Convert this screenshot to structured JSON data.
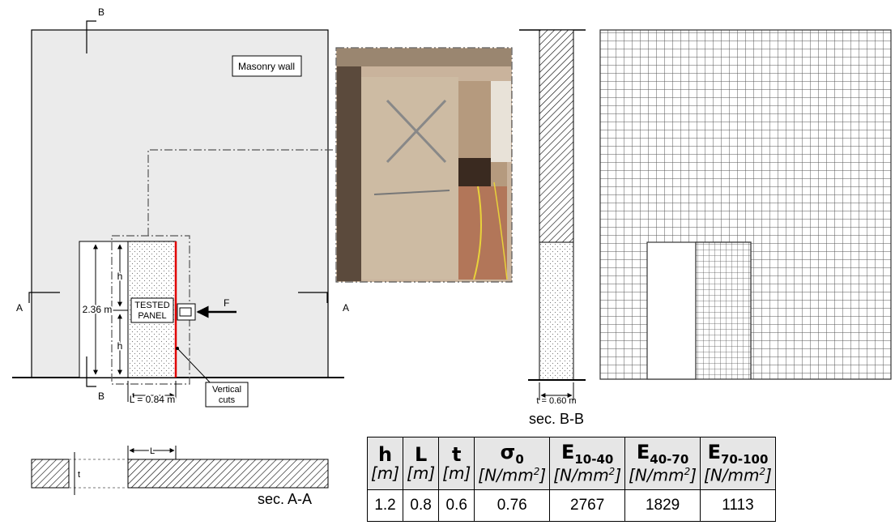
{
  "elevation": {
    "wall_label": "Masonry wall",
    "section_a_left": "A",
    "section_a_right": "A",
    "section_b_top": "B",
    "section_b_bottom": "B",
    "h_upper": "h",
    "h_lower": "h",
    "height_dim": "2.36 m",
    "panel_label_line1": "TESTED",
    "panel_label_line2": "PANEL",
    "force_label": "F",
    "length_dim": "L = 0.84 m",
    "cuts_label_line1": "Vertical",
    "cuts_label_line2": "cuts"
  },
  "section_aa": {
    "title": "sec. A-A",
    "l_label": "L",
    "t_label": "t"
  },
  "section_bb": {
    "title": "sec. B-B",
    "t_dim": "t = 0.60 m"
  },
  "table": {
    "headers": [
      {
        "symbol": "h",
        "sub": "",
        "unit": "[m]",
        "sup": ""
      },
      {
        "symbol": "L",
        "sub": "",
        "unit": "[m]",
        "sup": ""
      },
      {
        "symbol": "t",
        "sub": "",
        "unit": "[m]",
        "sup": ""
      },
      {
        "symbol": "σ",
        "sub": "0",
        "unit": "[N/mm",
        "sup": "2"
      },
      {
        "symbol": "E",
        "sub": "10-40",
        "unit": "[N/mm",
        "sup": "2"
      },
      {
        "symbol": "E",
        "sub": "40-70",
        "unit": "[N/mm",
        "sup": "2"
      },
      {
        "symbol": "E",
        "sub": "70-100",
        "unit": "[N/mm",
        "sup": "2"
      }
    ],
    "values": [
      "1.2",
      "0.8",
      "0.6",
      "0.76",
      "2767",
      "1829",
      "1113"
    ]
  },
  "colors": {
    "wall_fill": "#ebebeb",
    "cut_line": "#e00000",
    "mesh_line": "#555555"
  }
}
